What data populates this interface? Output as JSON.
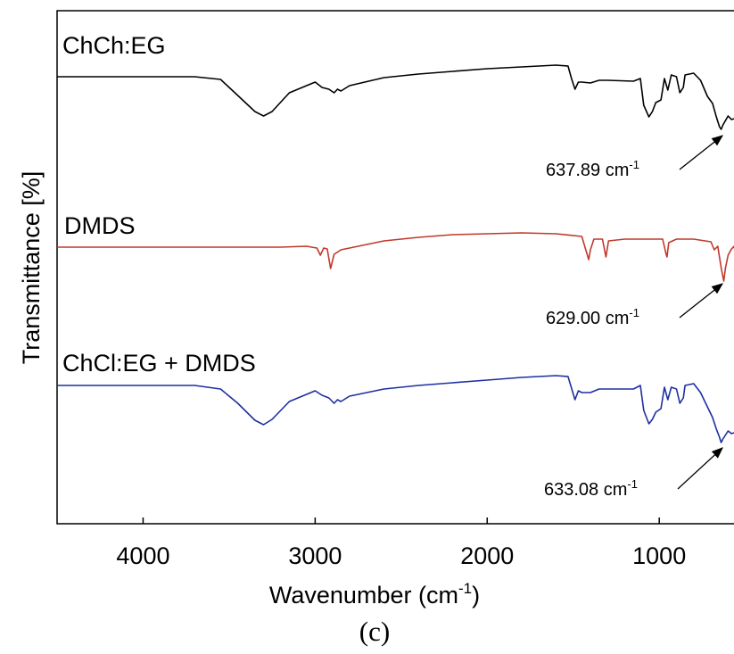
{
  "chart_data": {
    "type": "line",
    "xlabel_main": "Wavenumber (cm",
    "xlabel_sup": "-1",
    "xlabel_tail": ")",
    "ylabel": "Transmittance [%]",
    "xlim": [
      4500,
      550
    ],
    "x_reversed": true,
    "y_ticks_shown": false,
    "grid": false,
    "x_ticks": [
      4000,
      3000,
      2000,
      1000
    ],
    "x_tick_labels": [
      "4000",
      "3000",
      "2000",
      "1000"
    ],
    "panel_label": "(c)",
    "series": [
      {
        "name": "ChCh:EG",
        "color": "#000000",
        "annotation": {
          "text": "637.89 cm",
          "sup": "-1",
          "x": 637.89
        },
        "points": [
          [
            4500,
            86
          ],
          [
            3700,
            86
          ],
          [
            3550,
            89
          ],
          [
            3450,
            107
          ],
          [
            3350,
            125
          ],
          [
            3300,
            130
          ],
          [
            3250,
            125
          ],
          [
            3150,
            104
          ],
          [
            3050,
            96
          ],
          [
            3000,
            92
          ],
          [
            2960,
            98
          ],
          [
            2920,
            100
          ],
          [
            2890,
            104
          ],
          [
            2870,
            100
          ],
          [
            2850,
            102
          ],
          [
            2800,
            96
          ],
          [
            2600,
            87
          ],
          [
            2400,
            83
          ],
          [
            2200,
            80
          ],
          [
            2000,
            77
          ],
          [
            1800,
            75
          ],
          [
            1600,
            73
          ],
          [
            1530,
            74
          ],
          [
            1510,
            88
          ],
          [
            1490,
            100
          ],
          [
            1470,
            92
          ],
          [
            1450,
            92
          ],
          [
            1400,
            93
          ],
          [
            1350,
            90
          ],
          [
            1300,
            90
          ],
          [
            1150,
            91
          ],
          [
            1110,
            88
          ],
          [
            1090,
            118
          ],
          [
            1060,
            131
          ],
          [
            1040,
            125
          ],
          [
            1020,
            115
          ],
          [
            990,
            112
          ],
          [
            970,
            88
          ],
          [
            950,
            101
          ],
          [
            930,
            84
          ],
          [
            900,
            86
          ],
          [
            880,
            104
          ],
          [
            860,
            98
          ],
          [
            850,
            84
          ],
          [
            800,
            82
          ],
          [
            760,
            90
          ],
          [
            720,
            108
          ],
          [
            690,
            116
          ],
          [
            670,
            130
          ],
          [
            650,
            142
          ],
          [
            640,
            145
          ],
          [
            630,
            140
          ],
          [
            600,
            130
          ],
          [
            580,
            134
          ],
          [
            550,
            132
          ]
        ]
      },
      {
        "name": "DMDS",
        "color": "#c0392b",
        "annotation": {
          "text": "629.00 cm",
          "sup": "-1",
          "x": 629.0
        },
        "points": [
          [
            4500,
            277
          ],
          [
            3200,
            277
          ],
          [
            3050,
            276
          ],
          [
            2990,
            278
          ],
          [
            2970,
            286
          ],
          [
            2950,
            278
          ],
          [
            2930,
            279
          ],
          [
            2910,
            301
          ],
          [
            2890,
            285
          ],
          [
            2850,
            280
          ],
          [
            2600,
            270
          ],
          [
            2400,
            266
          ],
          [
            2200,
            263
          ],
          [
            2000,
            262
          ],
          [
            1800,
            261
          ],
          [
            1600,
            262
          ],
          [
            1450,
            265
          ],
          [
            1430,
            278
          ],
          [
            1410,
            291
          ],
          [
            1400,
            280
          ],
          [
            1380,
            268
          ],
          [
            1330,
            268
          ],
          [
            1310,
            288
          ],
          [
            1295,
            270
          ],
          [
            1200,
            268
          ],
          [
            1100,
            268
          ],
          [
            980,
            268
          ],
          [
            960,
            285
          ],
          [
            955,
            288
          ],
          [
            945,
            272
          ],
          [
            900,
            268
          ],
          [
            800,
            268
          ],
          [
            700,
            271
          ],
          [
            680,
            280
          ],
          [
            660,
            276
          ],
          [
            640,
            300
          ],
          [
            625,
            315
          ],
          [
            615,
            300
          ],
          [
            600,
            286
          ],
          [
            580,
            279
          ],
          [
            565,
            276
          ],
          [
            550,
            292
          ]
        ]
      },
      {
        "name": "ChCl:EG + DMDS",
        "color": "#1f2fa0",
        "annotation": {
          "text": "633.08 cm",
          "sup": "-1",
          "x": 633.08
        },
        "points": [
          [
            4500,
            432
          ],
          [
            3700,
            432
          ],
          [
            3550,
            436
          ],
          [
            3450,
            452
          ],
          [
            3350,
            471
          ],
          [
            3300,
            476
          ],
          [
            3250,
            470
          ],
          [
            3150,
            450
          ],
          [
            3050,
            442
          ],
          [
            3000,
            438
          ],
          [
            2960,
            443
          ],
          [
            2920,
            446
          ],
          [
            2890,
            452
          ],
          [
            2870,
            448
          ],
          [
            2850,
            450
          ],
          [
            2800,
            444
          ],
          [
            2600,
            436
          ],
          [
            2400,
            432
          ],
          [
            2200,
            429
          ],
          [
            2000,
            426
          ],
          [
            1800,
            423
          ],
          [
            1600,
            421
          ],
          [
            1530,
            422
          ],
          [
            1510,
            435
          ],
          [
            1490,
            448
          ],
          [
            1470,
            438
          ],
          [
            1450,
            440
          ],
          [
            1400,
            440
          ],
          [
            1350,
            436
          ],
          [
            1300,
            436
          ],
          [
            1150,
            436
          ],
          [
            1110,
            432
          ],
          [
            1090,
            460
          ],
          [
            1060,
            475
          ],
          [
            1040,
            470
          ],
          [
            1020,
            462
          ],
          [
            990,
            458
          ],
          [
            970,
            434
          ],
          [
            950,
            448
          ],
          [
            930,
            434
          ],
          [
            900,
            436
          ],
          [
            880,
            452
          ],
          [
            860,
            446
          ],
          [
            850,
            432
          ],
          [
            800,
            430
          ],
          [
            760,
            440
          ],
          [
            720,
            456
          ],
          [
            690,
            468
          ],
          [
            670,
            480
          ],
          [
            650,
            490
          ],
          [
            640,
            496
          ],
          [
            630,
            492
          ],
          [
            600,
            483
          ],
          [
            580,
            486
          ],
          [
            550,
            484
          ]
        ]
      }
    ]
  }
}
